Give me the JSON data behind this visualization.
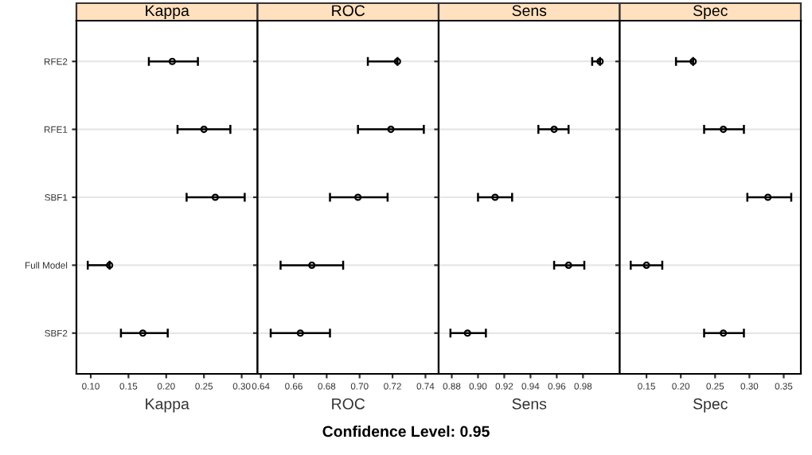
{
  "chart_data": [
    {
      "type": "scatter",
      "orientation": "horizontal",
      "title": "Kappa",
      "xlabel": "Kappa",
      "categories": [
        "RFE2",
        "RFE1",
        "SBF1",
        "Full Model",
        "SBF2"
      ],
      "values": [
        0.208,
        0.25,
        0.265,
        0.125,
        0.169
      ],
      "errors": [
        [
          0.177,
          0.242
        ],
        [
          0.215,
          0.285
        ],
        [
          0.227,
          0.304
        ],
        [
          0.096,
          0.125
        ],
        [
          0.14,
          0.202
        ]
      ],
      "color": "#000000",
      "marker": "circle",
      "grid": "y",
      "xlim": [
        0.081,
        0.321
      ],
      "xticks": [
        {
          "value": 0.1,
          "label": "0.10"
        },
        0.15,
        {
          "value": 0.2,
          "label": "0.20"
        },
        0.25,
        {
          "value": 0.3,
          "label": "0.30"
        }
      ],
      "annotations": [
        "Confidence Level: 0.95"
      ]
    },
    {
      "type": "scatter",
      "orientation": "horizontal",
      "title": "ROC",
      "xlabel": "ROC",
      "categories": [
        null,
        null,
        null,
        null,
        null
      ],
      "values": [
        0.723,
        0.719,
        0.699,
        0.671,
        0.664
      ],
      "errors": [
        [
          0.705,
          0.723
        ],
        [
          0.699,
          0.739
        ],
        [
          0.682,
          0.717
        ],
        [
          0.652,
          0.69
        ],
        [
          0.646,
          0.682
        ]
      ],
      "color": "#000000",
      "marker": "circle",
      "grid": "y",
      "tick_labels": "x",
      "xlim": [
        0.638,
        0.748
      ],
      "xticks": [
        0.64,
        0.66,
        0.68,
        {
          "value": 0.7,
          "label": "0.70"
        },
        0.72,
        0.74
      ]
    },
    {
      "type": "scatter",
      "orientation": "horizontal",
      "title": "Sens",
      "xlabel": "Sens",
      "categories": [
        null,
        null,
        null,
        null,
        null
      ],
      "values": [
        0.993,
        0.958,
        0.913,
        0.969,
        0.892
      ],
      "errors": [
        [
          0.987,
          0.993
        ],
        [
          0.946,
          0.969
        ],
        [
          0.9,
          0.926
        ],
        [
          0.958,
          0.981
        ],
        [
          0.879,
          0.906
        ]
      ],
      "color": "#000000",
      "marker": "circle",
      "grid": "y",
      "tick_labels": "x",
      "xlim": [
        0.87,
        1.008
      ],
      "xticks": [
        0.88,
        {
          "value": 0.9,
          "label": "0.90"
        },
        0.92,
        0.94,
        0.96,
        0.98
      ]
    },
    {
      "type": "scatter",
      "orientation": "horizontal",
      "title": "Spec",
      "xlabel": "Spec",
      "categories": [
        null,
        null,
        null,
        null,
        null
      ],
      "values": [
        0.218,
        0.262,
        0.327,
        0.15,
        0.262
      ],
      "errors": [
        [
          0.193,
          0.218
        ],
        [
          0.234,
          0.292
        ],
        [
          0.297,
          0.361
        ],
        [
          0.127,
          0.173
        ],
        [
          0.234,
          0.292
        ]
      ],
      "color": "#000000",
      "marker": "circle",
      "grid": "y",
      "tick_labels": "x",
      "xlim": [
        0.111,
        0.375
      ],
      "xticks": [
        0.15,
        {
          "value": 0.2,
          "label": "0.20"
        },
        0.25,
        {
          "value": 0.3,
          "label": "0.30"
        },
        0.35
      ]
    }
  ]
}
